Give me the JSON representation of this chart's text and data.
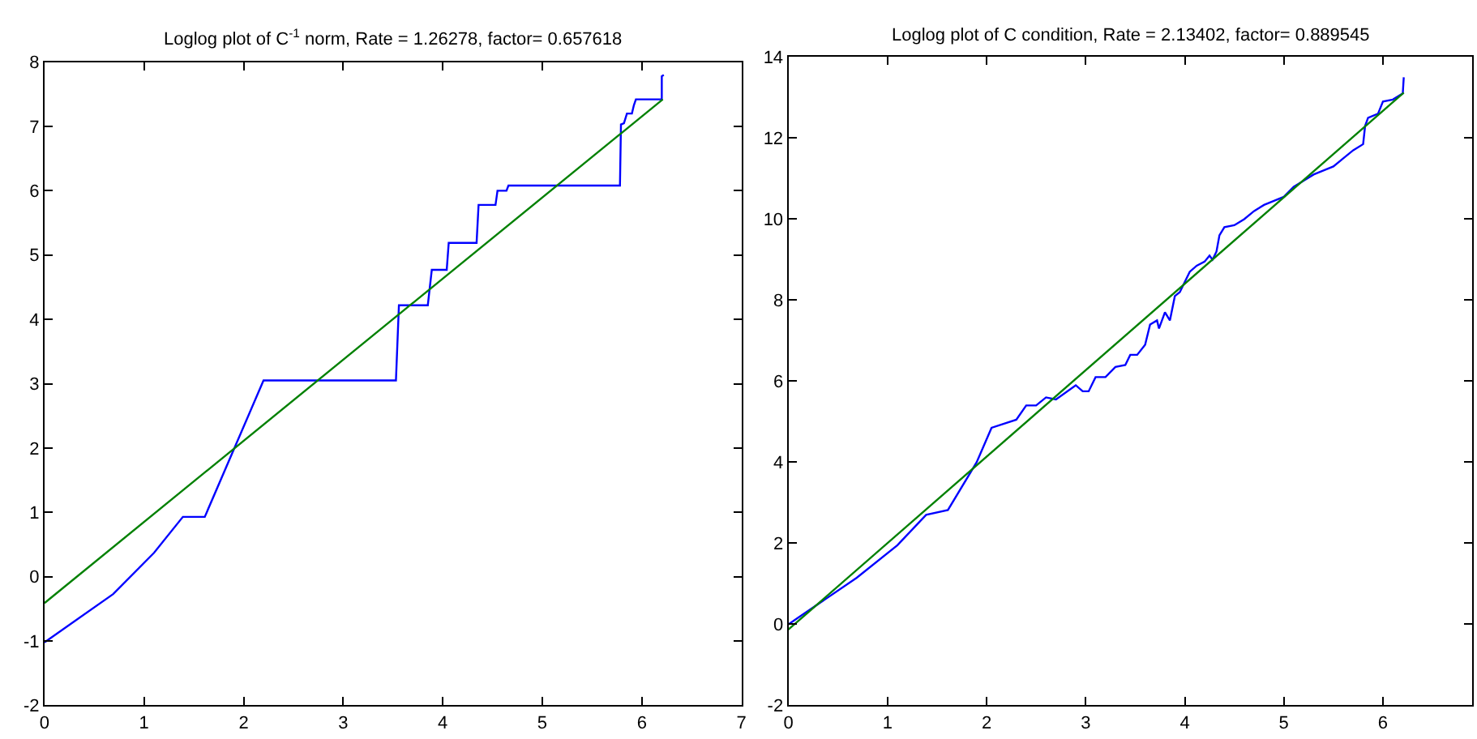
{
  "chart_data": [
    {
      "type": "line",
      "title": "Loglog plot of C$^{-1}$ norm, Rate = 1.26278, factor= 0.657618",
      "xlim": [
        0,
        7
      ],
      "ylim": [
        -2,
        8
      ],
      "xticks": [
        0,
        1,
        2,
        3,
        4,
        5,
        6,
        7
      ],
      "yticks": [
        -2,
        -1,
        0,
        1,
        2,
        3,
        4,
        5,
        6,
        7,
        8
      ],
      "series": [
        {
          "color": "#0000ff",
          "x": [
            0,
            0.69,
            1.1,
            1.39,
            1.61,
            2.2,
            3.53,
            3.56,
            3.85,
            3.89,
            4.04,
            4.06,
            4.34,
            4.36,
            4.53,
            4.55,
            4.64,
            4.66,
            5.78,
            5.79,
            5.82,
            5.85,
            5.9,
            5.92,
            5.94,
            6.2,
            6.2,
            6.22
          ],
          "values": [
            -1.02,
            -0.27,
            0.37,
            0.93,
            0.93,
            3.05,
            3.05,
            4.22,
            4.22,
            4.77,
            4.77,
            5.19,
            5.19,
            5.78,
            5.78,
            6.0,
            6.0,
            6.08,
            6.08,
            7.03,
            7.05,
            7.2,
            7.2,
            7.33,
            7.42,
            7.42,
            7.78,
            7.8
          ]
        },
        {
          "color": "#008000",
          "x": [
            0,
            6.21
          ],
          "values": [
            -0.41,
            7.42
          ]
        }
      ]
    },
    {
      "type": "line",
      "title": "Loglog plot of C condition, Rate = 2.13402, factor= 0.889545",
      "xlim": [
        0,
        6.9
      ],
      "ylim": [
        -2,
        14
      ],
      "xticks": [
        0,
        1,
        2,
        3,
        4,
        5,
        6
      ],
      "yticks": [
        -2,
        0,
        2,
        4,
        6,
        8,
        10,
        12,
        14
      ],
      "series": [
        {
          "color": "#0000ff",
          "x": [
            0,
            0.69,
            1.1,
            1.39,
            1.61,
            1.9,
            2.05,
            2.3,
            2.4,
            2.5,
            2.6,
            2.7,
            2.9,
            2.97,
            3.03,
            3.1,
            3.2,
            3.3,
            3.4,
            3.45,
            3.52,
            3.6,
            3.65,
            3.72,
            3.74,
            3.8,
            3.85,
            3.9,
            3.95,
            4.05,
            4.12,
            4.2,
            4.25,
            4.28,
            4.32,
            4.35,
            4.4,
            4.5,
            4.6,
            4.7,
            4.8,
            4.9,
            5.0,
            5.1,
            5.2,
            5.3,
            5.4,
            5.5,
            5.6,
            5.7,
            5.8,
            5.82,
            5.85,
            5.95,
            6.0,
            6.1,
            6.2,
            6.21
          ],
          "values": [
            0,
            1.15,
            1.95,
            2.7,
            2.82,
            4.0,
            4.85,
            5.05,
            5.4,
            5.4,
            5.6,
            5.55,
            5.9,
            5.75,
            5.75,
            6.1,
            6.1,
            6.35,
            6.4,
            6.65,
            6.65,
            6.9,
            7.4,
            7.5,
            7.3,
            7.7,
            7.5,
            8.1,
            8.2,
            8.7,
            8.85,
            8.95,
            9.1,
            9.0,
            9.2,
            9.6,
            9.8,
            9.85,
            10.0,
            10.2,
            10.35,
            10.45,
            10.55,
            10.8,
            10.95,
            11.1,
            11.2,
            11.3,
            11.5,
            11.7,
            11.85,
            12.3,
            12.5,
            12.6,
            12.9,
            12.95,
            13.1,
            13.5
          ]
        },
        {
          "color": "#008000",
          "x": [
            0,
            6.21
          ],
          "values": [
            -0.13,
            13.12
          ]
        }
      ]
    }
  ]
}
